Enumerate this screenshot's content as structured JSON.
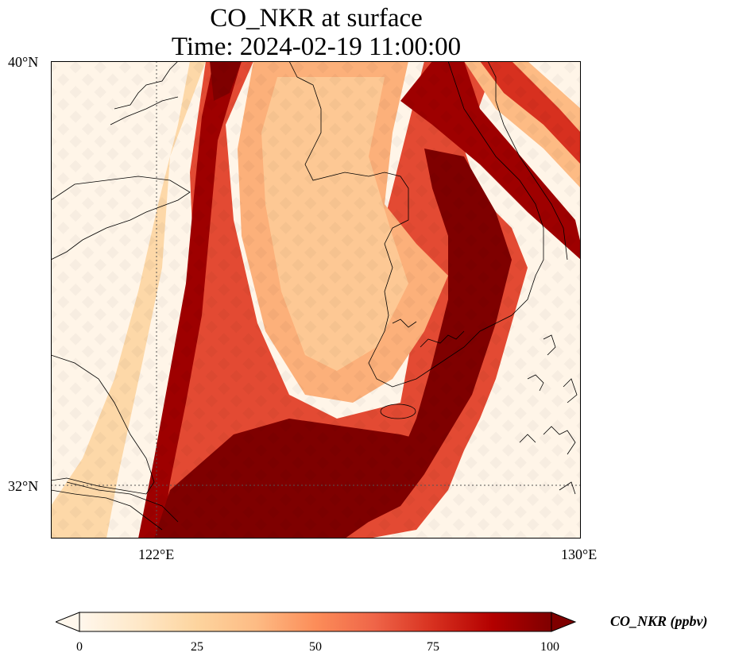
{
  "title": {
    "line1": "CO_NKR at surface",
    "line2": "Time: 2024-02-19 11:00:00"
  },
  "map": {
    "extent": {
      "lon": [
        119,
        130
      ],
      "lat": [
        31,
        40
      ]
    },
    "lat_ticks": [
      "40°N",
      "32°N"
    ],
    "lon_ticks": [
      "122°E",
      "130°E"
    ],
    "gridlines": {
      "lon": 122,
      "lat": 32,
      "style": "dotted"
    },
    "colormap": "OrRd",
    "plume": {
      "description_values_ppbv": {
        "background": 3,
        "plume_max": 100
      }
    }
  },
  "colorbar": {
    "label": "CO_NKR (ppbv)",
    "ticks": [
      "0",
      "25",
      "50",
      "75",
      "100"
    ],
    "range": [
      0,
      100
    ],
    "extend": "both",
    "colors": [
      "#fff7ec",
      "#fee8c8",
      "#fdd49e",
      "#fdbb84",
      "#fc8d59",
      "#ef6548",
      "#d7301f",
      "#b30000",
      "#7f0000"
    ]
  }
}
